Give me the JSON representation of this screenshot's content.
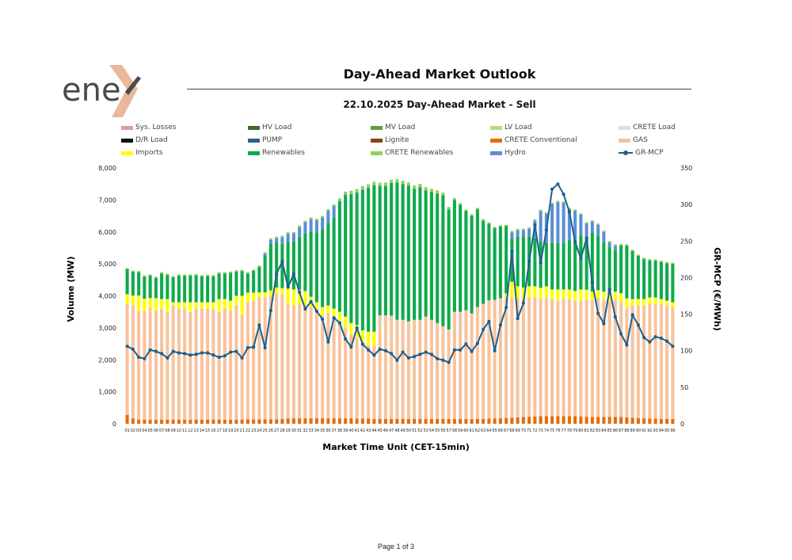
{
  "logo": {
    "text": "ene"
  },
  "report": {
    "title": "Day-Ahead Market Outlook",
    "subtitle": "22.10.2025  Day-Ahead Market - Sell"
  },
  "footer": {
    "page": "Page 1 of 3"
  },
  "chart_data": {
    "type": "bar",
    "stacked": true,
    "xlabel": "Market Time Unit (CET-15min)",
    "ylabel": "Volume (MW)",
    "y2label": "GR-MCP (€/MWh)",
    "ylim": [
      0,
      8000
    ],
    "yticks": [
      "0",
      "1,000",
      "2,000",
      "3,000",
      "4,000",
      "5,000",
      "6,000",
      "7,000",
      "8,000"
    ],
    "y2lim": [
      0,
      350
    ],
    "y2ticks": [
      "0",
      "50",
      "100",
      "150",
      "200",
      "250",
      "300",
      "350"
    ],
    "categories": [
      "01",
      "02",
      "03",
      "04",
      "05",
      "06",
      "07",
      "08",
      "09",
      "10",
      "11",
      "12",
      "13",
      "14",
      "15",
      "16",
      "17",
      "18",
      "19",
      "20",
      "21",
      "22",
      "23",
      "24",
      "25",
      "26",
      "27",
      "28",
      "29",
      "30",
      "31",
      "32",
      "33",
      "34",
      "35",
      "36",
      "37",
      "38",
      "39",
      "40",
      "41",
      "42",
      "43",
      "44",
      "45",
      "46",
      "47",
      "48",
      "49",
      "50",
      "51",
      "52",
      "53",
      "54",
      "55",
      "56",
      "57",
      "58",
      "59",
      "60",
      "61",
      "62",
      "63",
      "64",
      "65",
      "66",
      "67",
      "68",
      "69",
      "70",
      "71",
      "72",
      "73",
      "74",
      "75",
      "76",
      "77",
      "78",
      "79",
      "80",
      "81",
      "82",
      "83",
      "84",
      "85",
      "86",
      "87",
      "88",
      "89",
      "90",
      "91",
      "92",
      "93",
      "94",
      "95",
      "96"
    ],
    "legend": [
      {
        "name": "Sys. Losses",
        "color": "#D9A0A0",
        "kind": "bar"
      },
      {
        "name": "HV Load",
        "color": "#3F6B2A",
        "kind": "bar"
      },
      {
        "name": "MV Load",
        "color": "#6C9A3C",
        "kind": "bar"
      },
      {
        "name": "LV Load",
        "color": "#B8D88E",
        "kind": "bar"
      },
      {
        "name": "CRETE Load",
        "color": "#D5E8C3",
        "kind": "bar"
      },
      {
        "name": "D/R Load",
        "color": "#111111",
        "kind": "bar"
      },
      {
        "name": "PUMP",
        "color": "#2E5E8C",
        "kind": "bar"
      },
      {
        "name": "Lignite",
        "color": "#8B4513",
        "kind": "bar"
      },
      {
        "name": "CRETE Conventional",
        "color": "#E46C0A",
        "kind": "bar"
      },
      {
        "name": "GAS",
        "color": "#F8C39D",
        "kind": "bar"
      },
      {
        "name": "Imports",
        "color": "#FFFF00",
        "kind": "bar"
      },
      {
        "name": "Renewables",
        "color": "#0FAA4B",
        "kind": "bar"
      },
      {
        "name": "CRETE Renewables",
        "color": "#8ED45A",
        "kind": "bar"
      },
      {
        "name": "Hydro",
        "color": "#5B8FD6",
        "kind": "bar"
      },
      {
        "name": "GR-MCP",
        "color": "#1F5F8B",
        "kind": "line"
      }
    ],
    "series": [
      {
        "name": "CRETE Conventional",
        "color": "#E46C0A",
        "values": [
          280,
          170,
          130,
          130,
          130,
          130,
          130,
          130,
          130,
          130,
          130,
          130,
          130,
          130,
          130,
          130,
          130,
          130,
          130,
          130,
          130,
          140,
          140,
          140,
          140,
          140,
          140,
          150,
          160,
          170,
          170,
          170,
          170,
          170,
          170,
          170,
          170,
          170,
          170,
          170,
          160,
          160,
          160,
          150,
          150,
          150,
          150,
          150,
          150,
          150,
          150,
          150,
          150,
          150,
          150,
          150,
          150,
          150,
          150,
          150,
          150,
          150,
          150,
          160,
          170,
          170,
          180,
          190,
          200,
          210,
          220,
          230,
          240,
          240,
          240,
          240,
          240,
          240,
          240,
          230,
          220,
          210,
          210,
          210,
          210,
          210,
          210,
          200,
          190,
          180,
          170,
          160,
          160,
          150,
          150,
          150
        ]
      },
      {
        "name": "GAS",
        "color": "#F8C39D",
        "values": [
          3470,
          3540,
          3390,
          3390,
          3500,
          3400,
          3470,
          3370,
          3570,
          3470,
          3470,
          3370,
          3470,
          3470,
          3470,
          3470,
          3370,
          3470,
          3420,
          3570,
          3270,
          3660,
          3710,
          3820,
          3820,
          3860,
          3940,
          3890,
          3590,
          3530,
          3580,
          3530,
          3500,
          3380,
          3230,
          3280,
          3130,
          3030,
          2830,
          2630,
          2530,
          2340,
          2290,
          2290,
          3240,
          3240,
          3230,
          3100,
          3100,
          3050,
          3100,
          3100,
          3200,
          3100,
          3000,
          2900,
          2800,
          3350,
          3350,
          3400,
          3300,
          3500,
          3600,
          3700,
          3700,
          3750,
          3800,
          3750,
          3700,
          3700,
          3730,
          3720,
          3660,
          3710,
          3660,
          3610,
          3660,
          3660,
          3610,
          3620,
          3670,
          3670,
          3720,
          3670,
          3620,
          3670,
          3570,
          3420,
          3510,
          3520,
          3530,
          3590,
          3590,
          3600,
          3550,
          3500
        ]
      },
      {
        "name": "Imports",
        "color": "#FFFF00",
        "values": [
          300,
          300,
          490,
          390,
          300,
          400,
          300,
          400,
          100,
          200,
          200,
          300,
          200,
          200,
          200,
          200,
          400,
          300,
          300,
          300,
          600,
          300,
          250,
          150,
          150,
          170,
          180,
          200,
          510,
          500,
          450,
          450,
          300,
          250,
          250,
          250,
          300,
          300,
          350,
          350,
          400,
          420,
          430,
          440,
          0,
          0,
          0,
          0,
          0,
          0,
          0,
          0,
          0,
          0,
          0,
          0,
          0,
          0,
          0,
          0,
          0,
          0,
          0,
          0,
          0,
          0,
          100,
          500,
          400,
          350,
          350,
          350,
          350,
          350,
          300,
          350,
          300,
          300,
          300,
          350,
          300,
          250,
          250,
          250,
          250,
          250,
          300,
          300,
          200,
          200,
          200,
          200,
          200,
          150,
          150,
          150
        ]
      },
      {
        "name": "Renewables",
        "color": "#0FAA4B",
        "values": [
          780,
          740,
          730,
          690,
          700,
          630,
          800,
          750,
          780,
          830,
          830,
          830,
          840,
          810,
          820,
          810,
          800,
          800,
          870,
          760,
          770,
          600,
          680,
          800,
          1140,
          1460,
          1420,
          1390,
          1430,
          1500,
          1650,
          1800,
          2050,
          2180,
          2420,
          2580,
          2850,
          3450,
          3800,
          4020,
          4130,
          4390,
          4490,
          4570,
          4050,
          4050,
          4150,
          4300,
          4250,
          4250,
          4100,
          4150,
          3950,
          4000,
          4050,
          4100,
          3750,
          3500,
          3350,
          3100,
          3050,
          3050,
          2600,
          2400,
          2250,
          2250,
          2100,
          1350,
          1550,
          1600,
          1550,
          1500,
          1450,
          1350,
          1450,
          1450,
          1450,
          1550,
          1550,
          1700,
          1650,
          1850,
          1700,
          1550,
          1450,
          1300,
          1500,
          1650,
          1500,
          1350,
          1250,
          1160,
          1150,
          1160,
          1170,
          1200
        ]
      },
      {
        "name": "Hydro",
        "color": "#5B8FD6",
        "values": [
          0,
          0,
          0,
          0,
          0,
          0,
          0,
          0,
          0,
          0,
          0,
          0,
          0,
          0,
          0,
          0,
          0,
          0,
          0,
          0,
          0,
          0,
          0,
          0,
          70,
          120,
          120,
          200,
          250,
          250,
          300,
          350,
          380,
          380,
          380,
          380,
          360,
          20,
          20,
          20,
          20,
          20,
          20,
          20,
          0,
          0,
          0,
          0,
          0,
          0,
          0,
          0,
          0,
          0,
          0,
          0,
          0,
          0,
          0,
          0,
          0,
          0,
          0,
          0,
          0,
          0,
          0,
          200,
          200,
          200,
          250,
          550,
          950,
          920,
          1220,
          1280,
          1260,
          960,
          960,
          640,
          420,
          340,
          340,
          320,
          140,
          140,
          0,
          0,
          0,
          0,
          0,
          0,
          0,
          0,
          0,
          0
        ]
      },
      {
        "name": "CRETE Renewables",
        "color": "#8ED45A",
        "values": [
          40,
          40,
          40,
          40,
          40,
          40,
          40,
          40,
          40,
          40,
          40,
          40,
          40,
          40,
          40,
          40,
          40,
          40,
          40,
          40,
          40,
          40,
          40,
          40,
          40,
          50,
          50,
          50,
          50,
          50,
          50,
          50,
          50,
          50,
          50,
          50,
          50,
          80,
          90,
          100,
          100,
          100,
          100,
          100,
          100,
          100,
          100,
          100,
          100,
          100,
          100,
          100,
          100,
          100,
          100,
          80,
          80,
          60,
          50,
          50,
          50,
          50,
          50,
          40,
          40,
          40,
          40,
          40,
          40,
          40,
          40,
          40,
          40,
          40,
          40,
          40,
          40,
          40,
          40,
          40,
          40,
          40,
          40,
          40,
          40,
          40,
          40,
          40,
          40,
          40,
          40,
          40,
          40,
          40,
          40,
          40
        ]
      }
    ],
    "line": {
      "name": "GR-MCP",
      "color": "#1F5F8B",
      "values": [
        106,
        102,
        91,
        89,
        101,
        99,
        96,
        90,
        99,
        97,
        96,
        94,
        95,
        97,
        97,
        94,
        91,
        93,
        98,
        99,
        90,
        104,
        105,
        135,
        104,
        155,
        205,
        222,
        187,
        205,
        180,
        157,
        167,
        154,
        143,
        112,
        145,
        138,
        116,
        105,
        131,
        109,
        101,
        94,
        102,
        100,
        96,
        87,
        98,
        90,
        92,
        95,
        98,
        95,
        89,
        87,
        84,
        101,
        101,
        109,
        99,
        110,
        129,
        140,
        100,
        135,
        159,
        236,
        144,
        165,
        222,
        272,
        220,
        265,
        321,
        328,
        314,
        290,
        249,
        226,
        254,
        193,
        151,
        137,
        184,
        146,
        123,
        108,
        149,
        135,
        118,
        112,
        119,
        117,
        113,
        106
      ]
    }
  }
}
